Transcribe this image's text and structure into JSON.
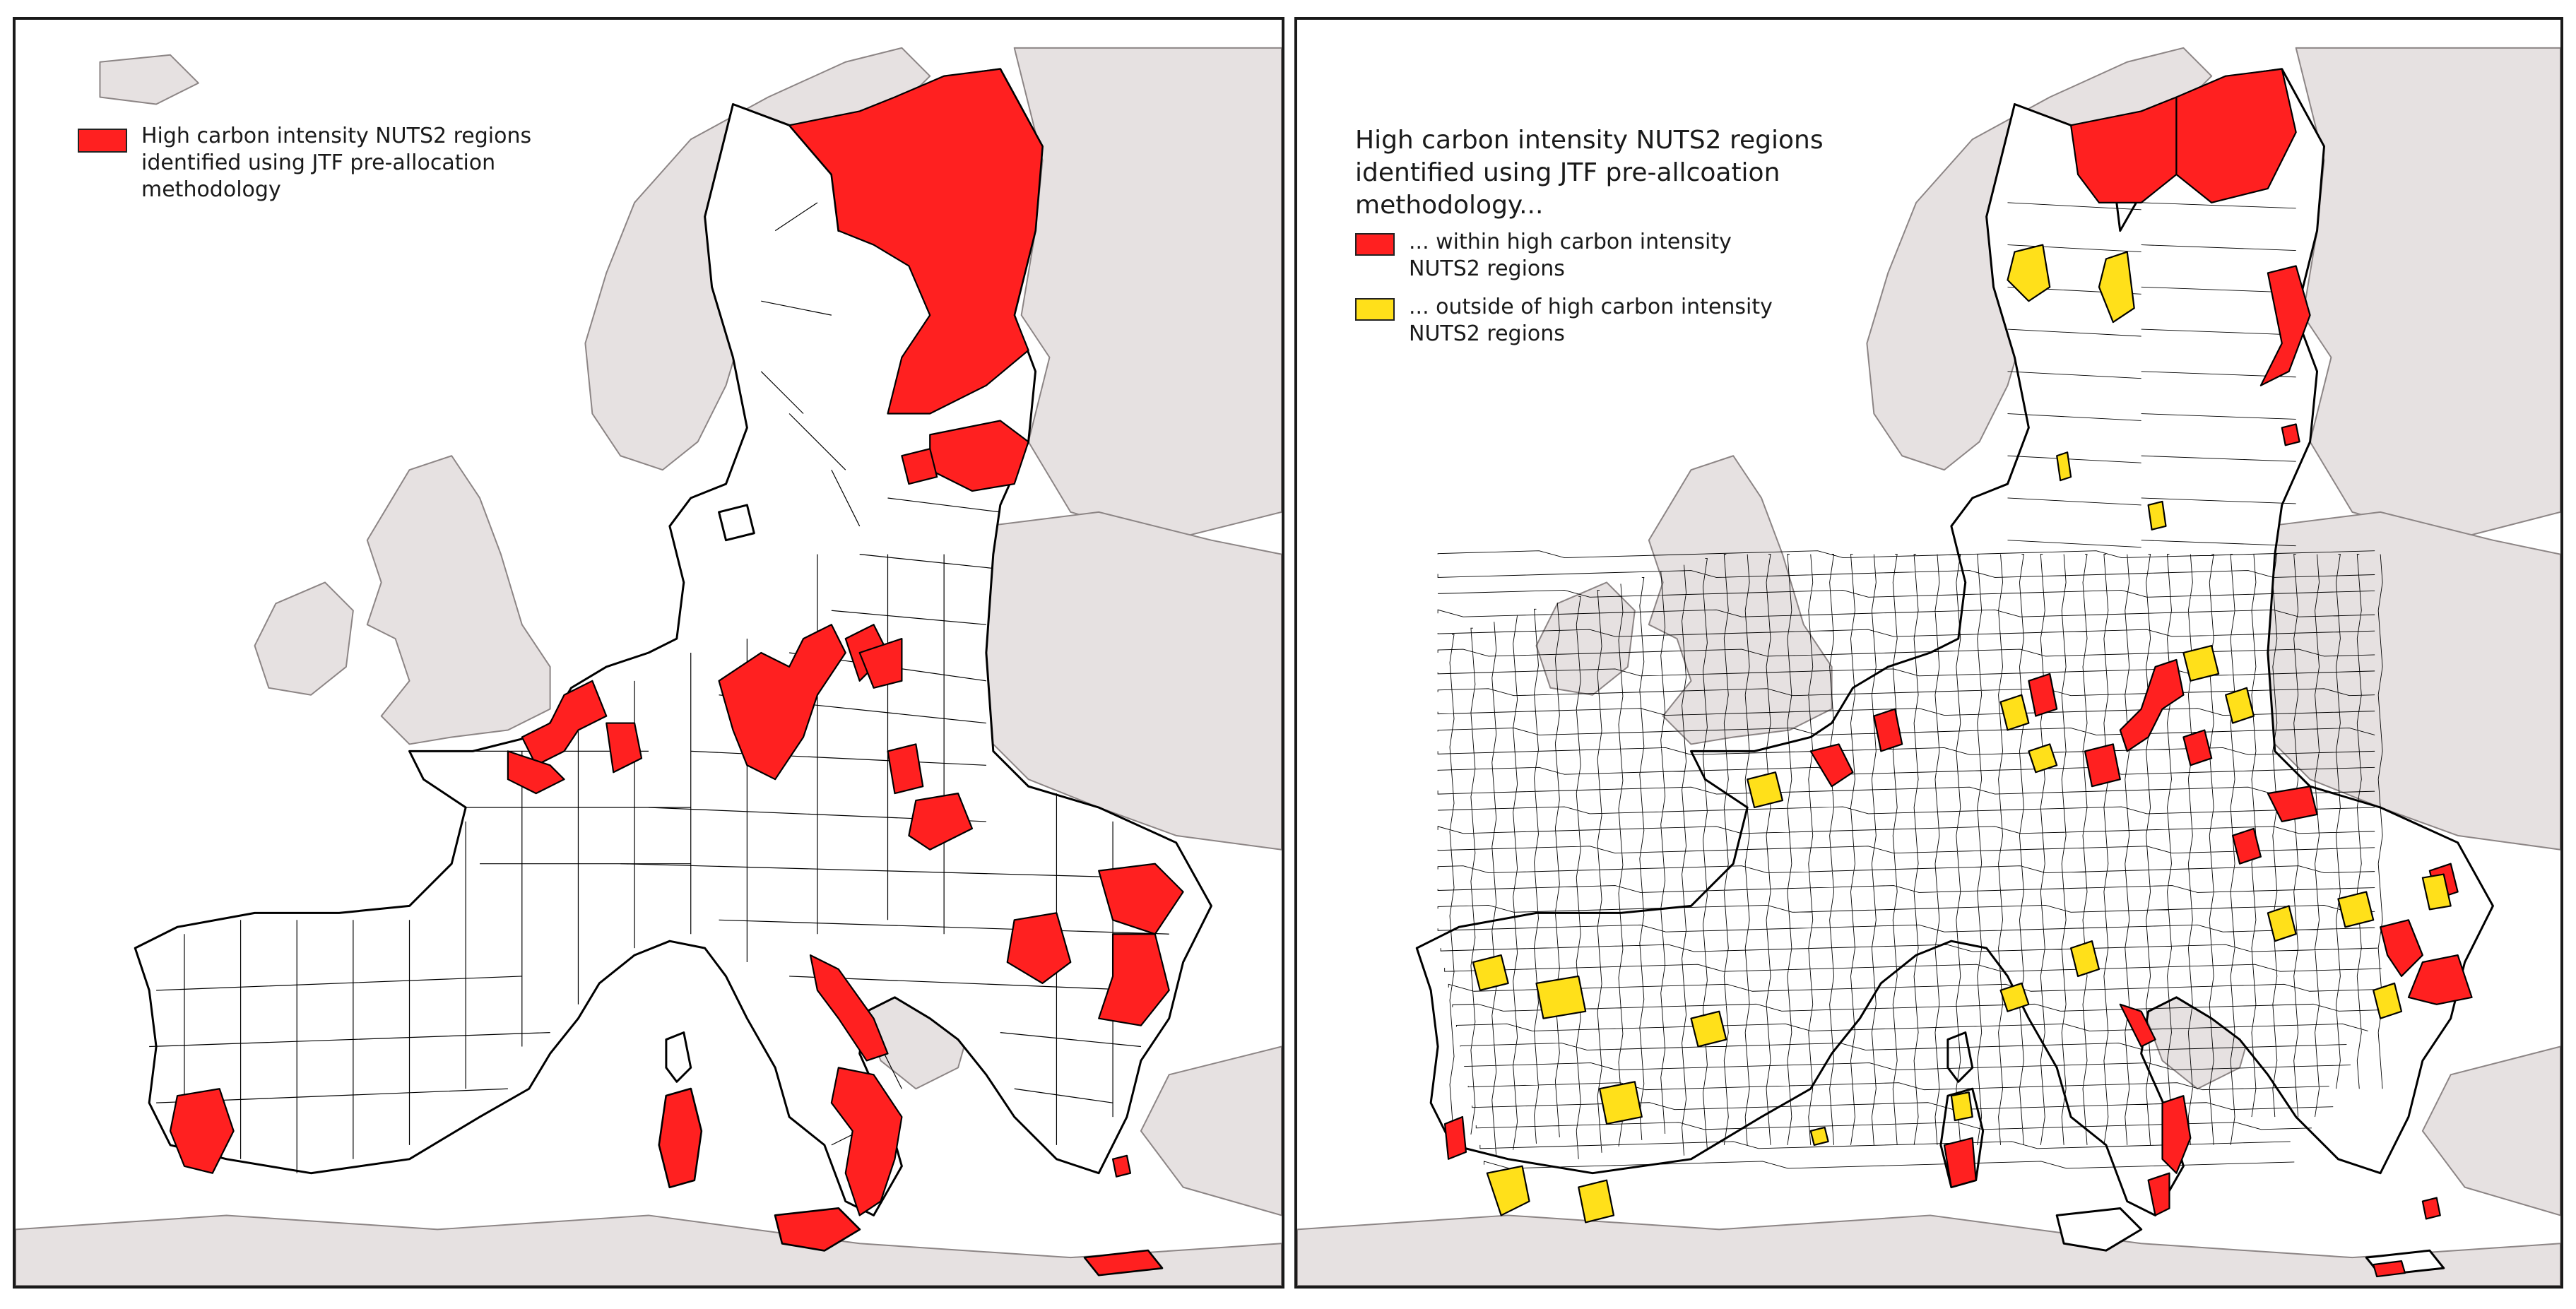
{
  "colors": {
    "high_carbon_red": "#ff2020",
    "outside_yellow": "#ffe01a",
    "non_eu_land": "#e6e1e1",
    "eu_land": "#ffffff",
    "sea": "#ffffff"
  },
  "left_map": {
    "legend": {
      "items": [
        {
          "label": "High carbon intensity NUTS2 regions\nidentified using JTF pre-allocation\nmethodology",
          "color": "#ff2020"
        }
      ]
    }
  },
  "right_map": {
    "legend": {
      "title": "High carbon intensity NUTS2 regions\nidentified using JTF pre-allcoation\nmethodology...",
      "items": [
        {
          "label": "... within high carbon intensity\nNUTS2 regions",
          "color": "#ff2020"
        },
        {
          "label": "... outside of high carbon intensity\nNUTS2 regions",
          "color": "#ffe01a"
        }
      ]
    }
  }
}
